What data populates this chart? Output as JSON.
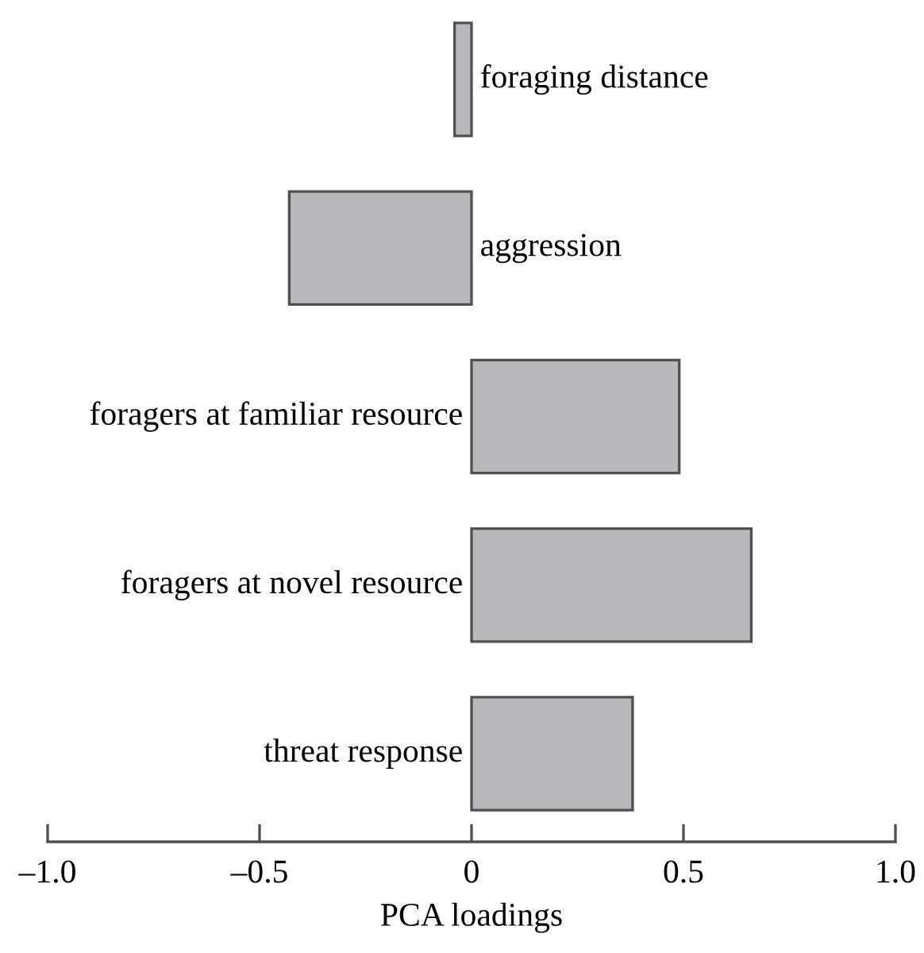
{
  "chart_data": {
    "type": "bar",
    "orientation": "horizontal",
    "xlabel": "PCA loadings",
    "categories": [
      "foraging distance",
      "aggression",
      "foragers at familiar resource",
      "foragers at novel resource",
      "threat response"
    ],
    "values": [
      -0.04,
      -0.43,
      0.49,
      0.66,
      0.38
    ],
    "color": "#b8b9bc",
    "xlim": [
      -1.0,
      1.0
    ],
    "xticks": [
      {
        "value": -1.0,
        "label": "–1.0"
      },
      {
        "value": -0.5,
        "label": "–0.5"
      },
      0,
      0.5,
      {
        "value": 1.0,
        "label": "1.0"
      }
    ],
    "grid": false,
    "legend": false
  }
}
